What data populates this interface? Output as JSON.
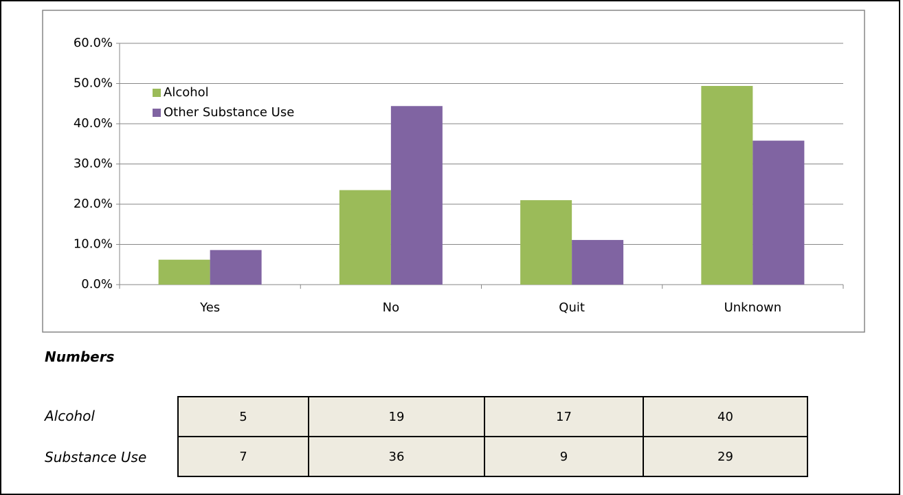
{
  "chart_data": {
    "type": "bar",
    "categories": [
      "Yes",
      "No",
      "Quit",
      "Unknown"
    ],
    "series": [
      {
        "name": "Alcohol",
        "color": "#9bbb59",
        "values": [
          6.2,
          23.5,
          21.0,
          49.4
        ]
      },
      {
        "name": "Other Substance Use",
        "color": "#8064a2",
        "values": [
          8.6,
          44.4,
          11.1,
          35.8
        ]
      }
    ],
    "ylim": [
      0,
      60
    ],
    "yticks": [
      {
        "value": 0,
        "label": "0.0%"
      },
      {
        "value": 10,
        "label": "10.0%"
      },
      {
        "value": 20,
        "label": "20.0%"
      },
      {
        "value": 30,
        "label": "30.0%"
      },
      {
        "value": 40,
        "label": "40.0%"
      },
      {
        "value": 50,
        "label": "50.0%"
      },
      {
        "value": 60,
        "label": "60.0%"
      }
    ],
    "grid": true
  },
  "table": {
    "title": "Numbers",
    "rows": [
      {
        "label": "Alcohol",
        "cells": [
          "5",
          "19",
          "17",
          "40"
        ]
      },
      {
        "label": "Substance Use",
        "cells": [
          "7",
          "36",
          "9",
          "29"
        ]
      }
    ]
  }
}
